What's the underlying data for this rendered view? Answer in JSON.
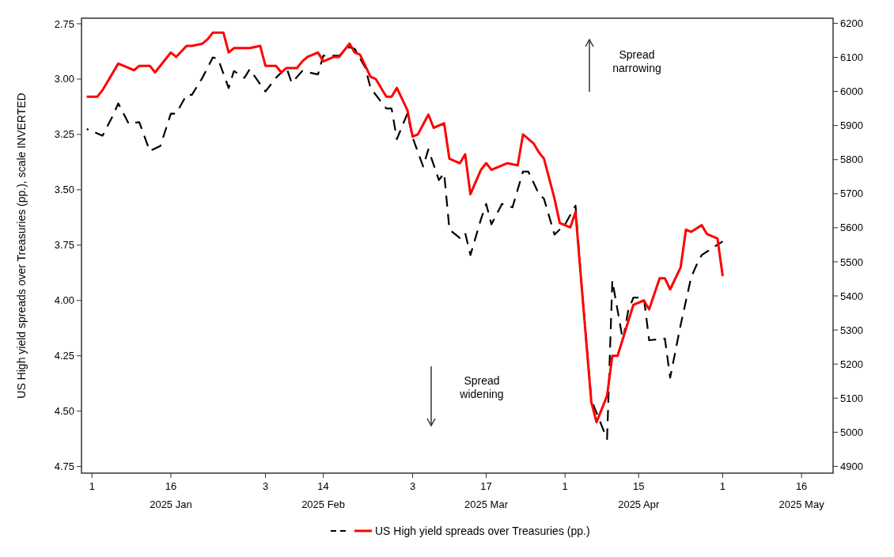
{
  "chart_data": {
    "type": "line",
    "ylabel": "US High yield spreads over Treasuries (pp.), scale INVERTED",
    "xlim": [
      "2024-12-30",
      "2025-05-22"
    ],
    "xticks": [
      {
        "value": "2025-01-01",
        "label": "1"
      },
      {
        "value": "2025-01-16",
        "label": "16\n2025 Jan"
      },
      {
        "value": "2025-02-03",
        "label": "3"
      },
      {
        "value": "2025-02-14",
        "label": "14\n2025 Feb"
      },
      {
        "value": "2025-03-03",
        "label": "3"
      },
      {
        "value": "2025-03-17",
        "label": "17\n2025 Mar"
      },
      {
        "value": "2025-04-01",
        "label": "1"
      },
      {
        "value": "2025-04-15",
        "label": "15\n2025 Apr"
      },
      {
        "value": "2025-05-01",
        "label": "1"
      },
      {
        "value": "2025-05-16",
        "label": "16\n2025 May"
      }
    ],
    "ylim": [
      4.78,
      2.725
    ],
    "yticks": [
      {
        "value": 2.75,
        "label": "2.75"
      },
      {
        "value": 3,
        "label": "3.00"
      },
      {
        "value": 3.25,
        "label": "3.25"
      },
      {
        "value": 3.5,
        "label": "3.50"
      },
      {
        "value": 3.75,
        "label": "3.75"
      },
      {
        "value": 4,
        "label": "4.00"
      },
      {
        "value": 4.25,
        "label": "4.25"
      },
      {
        "value": 4.5,
        "label": "4.50"
      },
      {
        "value": 4.75,
        "label": "4.75"
      }
    ],
    "y2lim": [
      4880,
      6215
    ],
    "y2ticks": [
      4900,
      5000,
      5100,
      5200,
      5300,
      5400,
      5500,
      5600,
      5700,
      5800,
      5900,
      6000,
      6100,
      6200
    ],
    "grid": false,
    "legend": "bottom",
    "annotations": [
      "Spread narrowing",
      "Spread widening"
    ],
    "series": [
      {
        "color": "#000000",
        "axis": "y2",
        "line_style": "dashed",
        "x": [
          "2024-12-31",
          "2025-01-03",
          "2025-01-05",
          "2025-01-06",
          "2025-01-08",
          "2025-01-10",
          "2025-01-12",
          "2025-01-14",
          "2025-01-16",
          "2025-01-17",
          "2025-01-19",
          "2025-01-20",
          "2025-01-22",
          "2025-01-24",
          "2025-01-25",
          "2025-01-27",
          "2025-01-28",
          "2025-01-30",
          "2025-01-31",
          "2025-02-03",
          "2025-02-05",
          "2025-02-07",
          "2025-02-08",
          "2025-02-10",
          "2025-02-13",
          "2025-02-14",
          "2025-02-17",
          "2025-02-19",
          "2025-02-20",
          "2025-02-22",
          "2025-02-23",
          "2025-02-25",
          "2025-02-26",
          "2025-02-27",
          "2025-02-28",
          "2025-03-02",
          "2025-03-03",
          "2025-03-05",
          "2025-03-06",
          "2025-03-08",
          "2025-03-09",
          "2025-03-10",
          "2025-03-12",
          "2025-03-13",
          "2025-03-14",
          "2025-03-16",
          "2025-03-17",
          "2025-03-18",
          "2025-03-20",
          "2025-03-22",
          "2025-03-24",
          "2025-03-25",
          "2025-03-27",
          "2025-03-28",
          "2025-03-30",
          "2025-04-01",
          "2025-04-03",
          "2025-04-04",
          "2025-04-06",
          "2025-04-09",
          "2025-04-10",
          "2025-04-12",
          "2025-04-13",
          "2025-04-14",
          "2025-04-16",
          "2025-04-17",
          "2025-04-20",
          "2025-04-21",
          "2025-04-23",
          "2025-04-25",
          "2025-04-26",
          "2025-04-27",
          "2025-05-01"
        ],
        "values": [
          5890,
          5870,
          5930,
          5965,
          5905,
          5910,
          5825,
          5840,
          5935,
          5935,
          5990,
          5990,
          6040,
          6100,
          6095,
          6010,
          6060,
          6040,
          6065,
          6000,
          6040,
          6070,
          6025,
          6060,
          6050,
          6105,
          6105,
          6130,
          6125,
          6070,
          6010,
          5970,
          5950,
          5950,
          5860,
          5935,
          5865,
          5780,
          5830,
          5740,
          5760,
          5595,
          5570,
          5585,
          5520,
          5625,
          5670,
          5610,
          5670,
          5660,
          5765,
          5765,
          5700,
          5685,
          5580,
          5610,
          5665,
          5460,
          5095,
          4980,
          5445,
          5270,
          5355,
          5395,
          5395,
          5270,
          5275,
          5160,
          5315,
          5455,
          5490,
          5520,
          5560
        ]
      },
      {
        "name": "US High yield spreads over Treasuries (pp.)",
        "color": "#ff0000",
        "line_style": "solid",
        "x": [
          "2024-12-31",
          "2025-01-02",
          "2025-01-03",
          "2025-01-06",
          "2025-01-07",
          "2025-01-09",
          "2025-01-10",
          "2025-01-12",
          "2025-01-13",
          "2025-01-15",
          "2025-01-16",
          "2025-01-17",
          "2025-01-19",
          "2025-01-20",
          "2025-01-22",
          "2025-01-23",
          "2025-01-24",
          "2025-01-26",
          "2025-01-27",
          "2025-01-28",
          "2025-01-30",
          "2025-01-31",
          "2025-02-02",
          "2025-02-03",
          "2025-02-05",
          "2025-02-06",
          "2025-02-07",
          "2025-02-09",
          "2025-02-10",
          "2025-02-11",
          "2025-02-13",
          "2025-02-14",
          "2025-02-16",
          "2025-02-17",
          "2025-02-19",
          "2025-02-20",
          "2025-02-21",
          "2025-02-23",
          "2025-02-24",
          "2025-02-26",
          "2025-02-27",
          "2025-02-28",
          "2025-03-02",
          "2025-03-03",
          "2025-03-04",
          "2025-03-06",
          "2025-03-07",
          "2025-03-09",
          "2025-03-10",
          "2025-03-12",
          "2025-03-13",
          "2025-03-14",
          "2025-03-16",
          "2025-03-17",
          "2025-03-18",
          "2025-03-20",
          "2025-03-21",
          "2025-03-23",
          "2025-03-24",
          "2025-03-26",
          "2025-03-27",
          "2025-03-28",
          "2025-03-30",
          "2025-03-31",
          "2025-04-02",
          "2025-04-03",
          "2025-04-04",
          "2025-04-06",
          "2025-04-07",
          "2025-04-09",
          "2025-04-10",
          "2025-04-11",
          "2025-04-14",
          "2025-04-16",
          "2025-04-17",
          "2025-04-19",
          "2025-04-20",
          "2025-04-21",
          "2025-04-23",
          "2025-04-24",
          "2025-04-25",
          "2025-04-27",
          "2025-04-28",
          "2025-04-30",
          "2025-05-01"
        ],
        "values": [
          3.08,
          3.08,
          3.05,
          2.93,
          2.94,
          2.96,
          2.94,
          2.94,
          2.97,
          2.91,
          2.88,
          2.9,
          2.85,
          2.85,
          2.84,
          2.82,
          2.79,
          2.79,
          2.88,
          2.86,
          2.86,
          2.86,
          2.85,
          2.94,
          2.94,
          2.97,
          2.95,
          2.95,
          2.92,
          2.9,
          2.88,
          2.92,
          2.9,
          2.9,
          2.84,
          2.88,
          2.89,
          2.99,
          3.0,
          3.08,
          3.08,
          3.04,
          3.14,
          3.26,
          3.25,
          3.16,
          3.22,
          3.2,
          3.36,
          3.38,
          3.34,
          3.52,
          3.41,
          3.38,
          3.41,
          3.39,
          3.38,
          3.39,
          3.25,
          3.29,
          3.33,
          3.36,
          3.54,
          3.65,
          3.67,
          3.6,
          3.89,
          4.46,
          4.55,
          4.43,
          4.25,
          4.25,
          4.02,
          4.0,
          4.04,
          3.9,
          3.9,
          3.95,
          3.85,
          3.68,
          3.69,
          3.66,
          3.7,
          3.72,
          3.89
        ]
      }
    ]
  }
}
